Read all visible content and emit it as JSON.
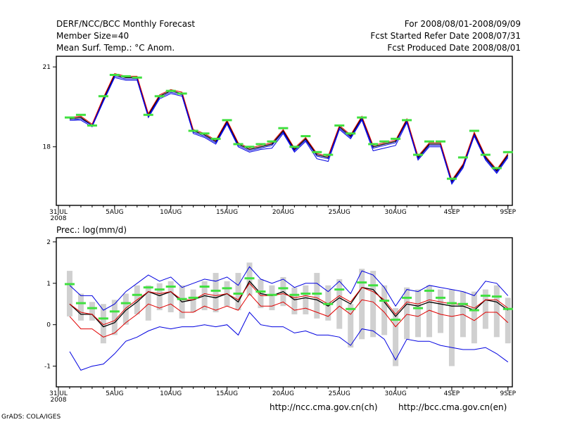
{
  "header": {
    "left_line1": "DERF/NCC/BCC Monthly Forecast",
    "left_line2": "Member Size=40",
    "left_line3": "Mean Surf. Temp.: °C Anom.",
    "right_line1": "For 2008/08/01-2008/09/09",
    "right_line2": "Fcst Started Refer Date 2008/07/31",
    "right_line3": "Fcst Produced Date 2008/08/01"
  },
  "footer": {
    "credit": "GrADS: COLA/IGES",
    "url1": "http://ncc.cma.gov.cn(ch)",
    "url2": "http://bcc.cma.gov.cn(en)"
  },
  "colors": {
    "mean": "#000000",
    "member_red": "#e00000",
    "member_blue": "#0000e0",
    "spread": "#d0d0d0",
    "marker": "#40e040"
  },
  "chart_data": [
    {
      "type": "line",
      "title": "Mean Surf. Temp.: °C Anom.",
      "x": [
        "31JUL 2008",
        "1AUG",
        "2AUG",
        "3AUG",
        "4AUG",
        "5AUG",
        "6AUG",
        "7AUG",
        "8AUG",
        "9AUG",
        "10AUG",
        "11AUG",
        "12AUG",
        "13AUG",
        "14AUG",
        "15AUG",
        "16AUG",
        "17AUG",
        "18AUG",
        "19AUG",
        "20AUG",
        "21AUG",
        "22AUG",
        "23AUG",
        "24AUG",
        "25AUG",
        "26AUG",
        "27AUG",
        "28AUG",
        "29AUG",
        "30AUG",
        "31AUG",
        "1SEP",
        "2SEP",
        "3SEP",
        "4SEP",
        "5SEP",
        "6SEP",
        "7SEP",
        "8SEP",
        "9SEP"
      ],
      "xticks": [
        "31JUL",
        "5AUG",
        "10AUG",
        "15AUG",
        "20AUG",
        "25AUG",
        "30AUG",
        "4SEP",
        "9SEP"
      ],
      "xtick_year": "2008",
      "ylim": [
        15.8,
        21.4
      ],
      "yticks": [
        "18",
        "21"
      ],
      "markers": [
        null,
        19.1,
        19.2,
        18.8,
        19.9,
        20.7,
        20.65,
        20.6,
        19.2,
        19.9,
        20.1,
        20.0,
        18.6,
        18.5,
        18.3,
        19.0,
        18.1,
        18.0,
        18.1,
        18.2,
        18.7,
        18.0,
        18.4,
        17.8,
        17.7,
        18.8,
        18.5,
        19.1,
        18.1,
        18.2,
        18.3,
        19.0,
        17.7,
        18.2,
        18.2,
        16.8,
        17.6,
        18.6,
        17.7,
        17.2,
        17.8
      ],
      "series": [
        {
          "name": "ensemble mean",
          "values": [
            null,
            19.05,
            19.1,
            18.8,
            19.8,
            20.7,
            20.6,
            20.6,
            19.2,
            19.9,
            20.1,
            20.0,
            18.6,
            18.45,
            18.2,
            18.95,
            18.1,
            17.9,
            18.0,
            18.1,
            18.6,
            17.9,
            18.3,
            17.7,
            17.6,
            18.75,
            18.4,
            19.1,
            18.0,
            18.1,
            18.2,
            19.0,
            17.6,
            18.1,
            18.1,
            16.7,
            17.3,
            18.5,
            17.6,
            17.1,
            17.7
          ]
        },
        {
          "name": "member-red",
          "values": [
            null,
            19.1,
            19.15,
            18.85,
            19.85,
            20.75,
            20.65,
            20.65,
            19.25,
            19.95,
            20.15,
            20.05,
            18.65,
            18.5,
            18.25,
            19.0,
            18.15,
            17.95,
            18.05,
            18.15,
            18.65,
            17.95,
            18.35,
            17.75,
            17.65,
            18.8,
            18.45,
            19.15,
            18.05,
            18.15,
            18.25,
            19.05,
            17.65,
            18.15,
            18.15,
            16.75,
            17.35,
            18.55,
            17.65,
            17.15,
            17.75
          ]
        },
        {
          "name": "member-blue-upper",
          "values": [
            null,
            19.0,
            19.05,
            18.8,
            19.75,
            20.65,
            20.55,
            20.55,
            19.15,
            19.85,
            20.05,
            19.95,
            18.55,
            18.4,
            18.15,
            18.9,
            18.05,
            17.85,
            17.95,
            18.05,
            18.55,
            17.85,
            18.25,
            17.65,
            17.55,
            18.7,
            18.35,
            19.05,
            17.95,
            18.05,
            18.15,
            18.95,
            17.55,
            18.05,
            18.05,
            16.65,
            17.25,
            18.45,
            17.55,
            17.05,
            17.65
          ]
        },
        {
          "name": "member-blue-lower",
          "values": [
            null,
            19.0,
            19.0,
            18.75,
            19.7,
            20.6,
            20.5,
            20.5,
            19.1,
            19.8,
            20.0,
            19.9,
            18.5,
            18.35,
            18.1,
            18.85,
            18.0,
            17.8,
            17.9,
            17.95,
            18.5,
            17.8,
            18.2,
            17.55,
            17.45,
            18.65,
            18.3,
            19.0,
            17.85,
            17.95,
            18.05,
            18.9,
            17.5,
            18.0,
            18.0,
            16.6,
            17.2,
            18.4,
            17.5,
            17.0,
            17.6
          ]
        }
      ]
    },
    {
      "type": "line",
      "title": "Prec.: log(mm/d)",
      "x": [
        "31JUL 2008",
        "1AUG",
        "2AUG",
        "3AUG",
        "4AUG",
        "5AUG",
        "6AUG",
        "7AUG",
        "8AUG",
        "9AUG",
        "10AUG",
        "11AUG",
        "12AUG",
        "13AUG",
        "14AUG",
        "15AUG",
        "16AUG",
        "17AUG",
        "18AUG",
        "19AUG",
        "20AUG",
        "21AUG",
        "22AUG",
        "23AUG",
        "24AUG",
        "25AUG",
        "26AUG",
        "27AUG",
        "28AUG",
        "29AUG",
        "30AUG",
        "31AUG",
        "1SEP",
        "2SEP",
        "3SEP",
        "4SEP",
        "5SEP",
        "6SEP",
        "7SEP",
        "8SEP",
        "9SEP"
      ],
      "xticks": [
        "31JUL",
        "5AUG",
        "10AUG",
        "15AUG",
        "20AUG",
        "25AUG",
        "30AUG",
        "4SEP",
        "9SEP"
      ],
      "xtick_year": "2008",
      "ylim": [
        -1.5,
        2.1
      ],
      "yticks": [
        "-1",
        "0",
        "1",
        "2"
      ],
      "spread_low": [
        null,
        0.2,
        0.1,
        0.1,
        -0.45,
        -0.25,
        0.0,
        0.25,
        0.1,
        0.35,
        0.3,
        0.15,
        0.3,
        0.35,
        0.3,
        0.45,
        0.35,
        0.7,
        0.4,
        0.35,
        0.45,
        0.25,
        0.25,
        0.15,
        0.1,
        -0.1,
        -0.55,
        -0.35,
        -0.3,
        -0.25,
        -1.0,
        -0.35,
        -0.3,
        -0.3,
        -0.2,
        -1.0,
        -0.3,
        -0.45,
        -0.1,
        -0.3,
        -0.45
      ],
      "spread_high": [
        null,
        1.3,
        0.75,
        0.55,
        0.5,
        0.6,
        0.75,
        0.95,
        0.95,
        1.0,
        1.05,
        0.95,
        0.85,
        1.05,
        1.25,
        1.05,
        1.25,
        1.5,
        1.1,
        0.95,
        1.15,
        0.9,
        0.95,
        1.25,
        0.95,
        1.1,
        0.5,
        1.35,
        1.3,
        0.95,
        0.4,
        0.9,
        0.85,
        0.95,
        0.85,
        0.85,
        0.8,
        0.8,
        0.85,
        0.95,
        0.65
      ],
      "markers": [
        null,
        0.98,
        0.52,
        0.4,
        0.15,
        0.32,
        0.52,
        0.72,
        0.9,
        0.85,
        0.92,
        0.62,
        0.65,
        0.92,
        0.82,
        0.88,
        0.75,
        1.12,
        0.8,
        0.72,
        0.88,
        0.72,
        0.75,
        0.75,
        0.5,
        0.85,
        0.38,
        1.02,
        0.95,
        0.58,
        0.12,
        0.65,
        0.4,
        0.82,
        0.65,
        0.52,
        0.5,
        0.35,
        0.7,
        0.68,
        0.38
      ],
      "series": [
        {
          "name": "ensemble mean",
          "values": [
            null,
            0.5,
            0.25,
            0.25,
            -0.05,
            0.05,
            0.35,
            0.55,
            0.8,
            0.7,
            0.8,
            0.55,
            0.6,
            0.7,
            0.65,
            0.75,
            0.55,
            1.05,
            0.75,
            0.7,
            0.8,
            0.6,
            0.65,
            0.6,
            0.45,
            0.65,
            0.5,
            0.9,
            0.85,
            0.55,
            0.2,
            0.5,
            0.45,
            0.55,
            0.5,
            0.45,
            0.45,
            0.35,
            0.6,
            0.55,
            0.35
          ]
        },
        {
          "name": "member-red",
          "values": [
            null,
            0.5,
            0.3,
            0.25,
            0.0,
            0.1,
            0.4,
            0.6,
            0.8,
            0.75,
            0.8,
            0.6,
            0.6,
            0.75,
            0.7,
            0.75,
            0.6,
            1.0,
            0.7,
            0.7,
            0.75,
            0.65,
            0.7,
            0.65,
            0.5,
            0.7,
            0.55,
            0.9,
            0.8,
            0.6,
            0.25,
            0.55,
            0.5,
            0.6,
            0.55,
            0.5,
            0.5,
            0.4,
            0.6,
            0.6,
            0.4
          ]
        },
        {
          "name": "member-red-low",
          "values": [
            null,
            0.2,
            -0.1,
            -0.1,
            -0.3,
            -0.2,
            0.05,
            0.25,
            0.5,
            0.4,
            0.5,
            0.3,
            0.3,
            0.45,
            0.35,
            0.45,
            0.35,
            0.75,
            0.45,
            0.45,
            0.55,
            0.35,
            0.4,
            0.3,
            0.2,
            0.45,
            0.25,
            0.6,
            0.55,
            0.3,
            -0.05,
            0.25,
            0.2,
            0.35,
            0.25,
            0.2,
            0.25,
            0.1,
            0.3,
            0.3,
            0.05
          ]
        },
        {
          "name": "member-blue-high",
          "values": [
            null,
            0.95,
            0.7,
            0.7,
            0.35,
            0.5,
            0.8,
            1.0,
            1.2,
            1.05,
            1.15,
            0.9,
            1.0,
            1.1,
            1.05,
            1.15,
            0.95,
            1.4,
            1.1,
            1.0,
            1.1,
            0.9,
            1.0,
            1.0,
            0.8,
            1.05,
            0.75,
            1.3,
            1.2,
            0.9,
            0.45,
            0.85,
            0.8,
            0.95,
            0.9,
            0.85,
            0.8,
            0.7,
            1.05,
            1.0,
            0.7
          ]
        },
        {
          "name": "member-blue-low",
          "values": [
            null,
            -0.65,
            -1.1,
            -1.0,
            -0.95,
            -0.7,
            -0.4,
            -0.3,
            -0.15,
            -0.05,
            -0.1,
            -0.05,
            -0.05,
            0.0,
            -0.05,
            0.0,
            -0.25,
            0.3,
            0.0,
            -0.05,
            -0.05,
            -0.2,
            -0.15,
            -0.25,
            -0.25,
            -0.3,
            -0.5,
            -0.1,
            -0.15,
            -0.35,
            -0.85,
            -0.35,
            -0.4,
            -0.4,
            -0.5,
            -0.55,
            -0.6,
            -0.6,
            -0.55,
            -0.7,
            -0.9
          ]
        }
      ]
    }
  ]
}
